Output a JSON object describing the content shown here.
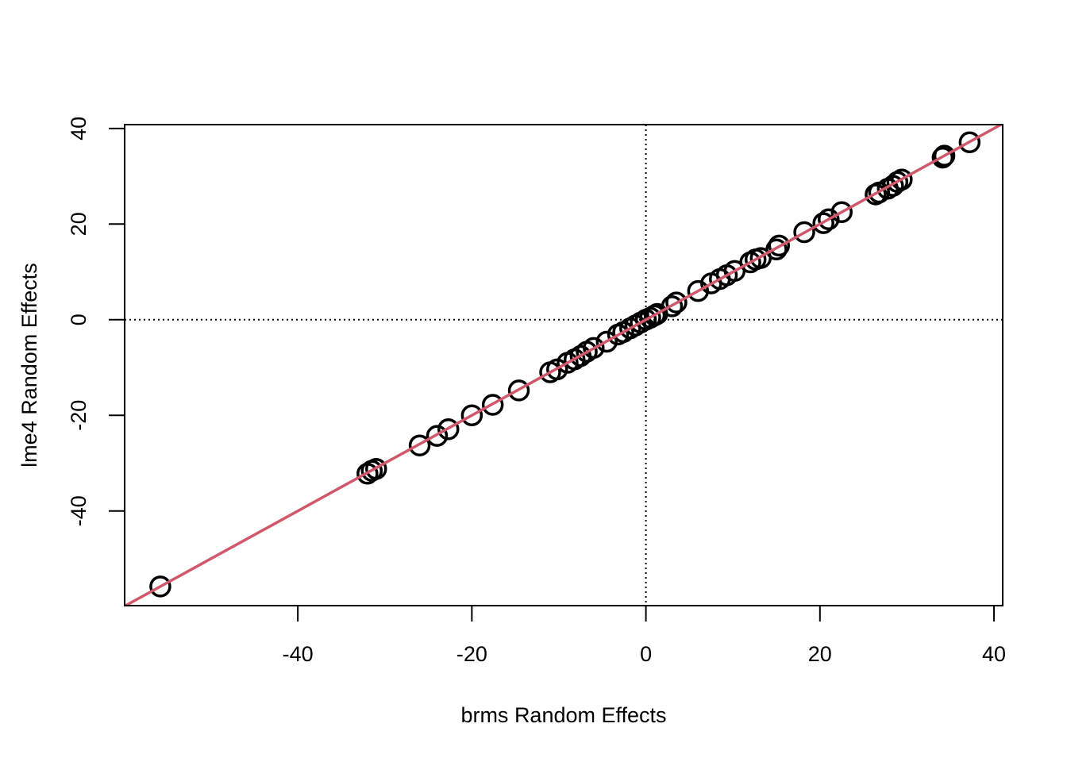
{
  "chart_data": {
    "type": "scatter",
    "xlabel": "brms Random Effects",
    "ylabel": "lme4 Random Effects",
    "xlim": [
      -59.9,
      41
    ],
    "ylim": [
      -59.8,
      40.8
    ],
    "x_ticks": [
      -40,
      -20,
      0,
      20,
      40
    ],
    "y_ticks": [
      -40,
      -20,
      0,
      20,
      40
    ],
    "grid": false,
    "reference_lines": [
      {
        "type": "vline",
        "value": 0,
        "style": "dotted"
      },
      {
        "type": "hline",
        "value": 0,
        "style": "dotted"
      },
      {
        "type": "abline",
        "intercept": 0,
        "slope": 1,
        "color": "#D1576B"
      }
    ],
    "marker": "open-circle",
    "series": [
      {
        "points": [
          {
            "x": -55.8,
            "y": -55.8
          },
          {
            "x": -32.0,
            "y": -32.2
          },
          {
            "x": -31.5,
            "y": -31.6
          },
          {
            "x": -31.0,
            "y": -31.2
          },
          {
            "x": -26.0,
            "y": -26.3
          },
          {
            "x": -24.0,
            "y": -24.3
          },
          {
            "x": -22.7,
            "y": -22.9
          },
          {
            "x": -20.0,
            "y": -20.0
          },
          {
            "x": -17.6,
            "y": -17.8
          },
          {
            "x": -14.6,
            "y": -14.8
          },
          {
            "x": -11.0,
            "y": -11.0
          },
          {
            "x": -10.2,
            "y": -10.4
          },
          {
            "x": -9.0,
            "y": -9.0
          },
          {
            "x": -8.2,
            "y": -8.3
          },
          {
            "x": -7.5,
            "y": -7.6
          },
          {
            "x": -6.8,
            "y": -6.7
          },
          {
            "x": -6.0,
            "y": -5.9
          },
          {
            "x": -4.5,
            "y": -4.6
          },
          {
            "x": -3.2,
            "y": -3.1
          },
          {
            "x": -2.6,
            "y": -2.6
          },
          {
            "x": -1.8,
            "y": -1.8
          },
          {
            "x": -1.2,
            "y": -1.2
          },
          {
            "x": -0.6,
            "y": -0.6
          },
          {
            "x": 0.0,
            "y": 0.0
          },
          {
            "x": 0.5,
            "y": 0.4
          },
          {
            "x": 1.0,
            "y": 0.9
          },
          {
            "x": 1.3,
            "y": 1.2
          },
          {
            "x": 3.0,
            "y": 2.8
          },
          {
            "x": 3.5,
            "y": 3.6
          },
          {
            "x": 6.0,
            "y": 6.0
          },
          {
            "x": 7.5,
            "y": 7.6
          },
          {
            "x": 8.5,
            "y": 8.5
          },
          {
            "x": 9.3,
            "y": 9.3
          },
          {
            "x": 10.2,
            "y": 10.2
          },
          {
            "x": 12.0,
            "y": 12.0
          },
          {
            "x": 12.6,
            "y": 12.6
          },
          {
            "x": 13.2,
            "y": 12.9
          },
          {
            "x": 15.0,
            "y": 14.7
          },
          {
            "x": 15.3,
            "y": 15.5
          },
          {
            "x": 18.2,
            "y": 18.3
          },
          {
            "x": 20.4,
            "y": 20.2
          },
          {
            "x": 21.0,
            "y": 21.0
          },
          {
            "x": 22.5,
            "y": 22.5
          },
          {
            "x": 26.4,
            "y": 26.2
          },
          {
            "x": 26.8,
            "y": 26.6
          },
          {
            "x": 27.8,
            "y": 27.4
          },
          {
            "x": 28.4,
            "y": 28.0
          },
          {
            "x": 28.9,
            "y": 28.8
          },
          {
            "x": 29.4,
            "y": 29.3
          },
          {
            "x": 34.1,
            "y": 33.9
          },
          {
            "x": 34.3,
            "y": 34.3
          },
          {
            "x": 37.2,
            "y": 37.1
          }
        ]
      }
    ]
  }
}
